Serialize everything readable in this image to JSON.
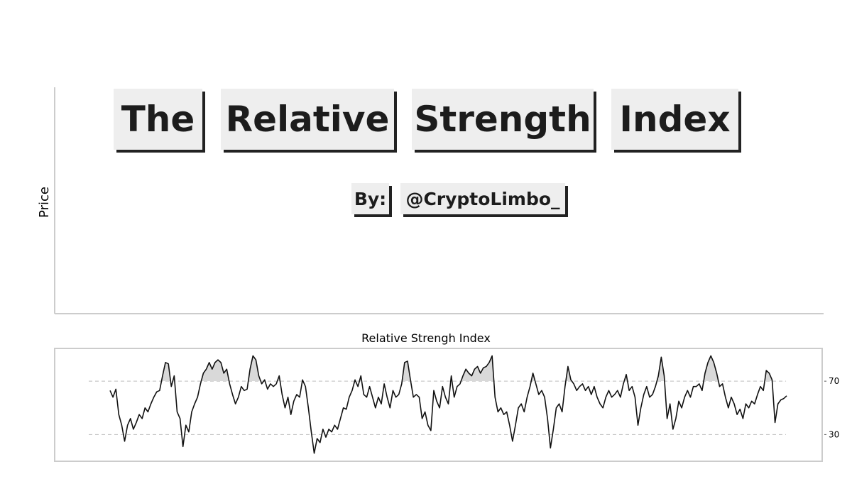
{
  "header": {
    "title_words": [
      "The",
      "Relative",
      "Strength",
      "Index"
    ],
    "byline": [
      "By:",
      "@CryptoLimbo_"
    ]
  },
  "price_panel": {
    "ylabel": "Price"
  },
  "chart_data": {
    "type": "line",
    "title": "Relative Strengh Index",
    "ylim": [
      10,
      94
    ],
    "yticks": [
      30,
      70
    ],
    "grid": true,
    "color": "#111111",
    "shade_color": "#d9d9d9",
    "values": [
      63,
      58,
      64,
      45,
      37,
      25,
      37,
      42,
      34,
      39,
      45,
      42,
      50,
      47,
      53,
      58,
      62,
      63,
      74,
      84,
      83,
      66,
      74,
      47,
      42,
      21,
      37,
      32,
      47,
      53,
      58,
      68,
      76,
      79,
      84,
      79,
      84,
      86,
      84,
      76,
      79,
      68,
      60,
      53,
      58,
      66,
      63,
      64,
      79,
      89,
      86,
      74,
      68,
      71,
      64,
      68,
      66,
      68,
      74,
      60,
      50,
      58,
      45,
      55,
      60,
      58,
      71,
      66,
      50,
      32,
      16,
      27,
      24,
      34,
      28,
      34,
      32,
      37,
      34,
      42,
      50,
      49,
      58,
      63,
      71,
      66,
      74,
      60,
      58,
      66,
      58,
      50,
      58,
      53,
      68,
      58,
      50,
      63,
      58,
      60,
      68,
      84,
      85,
      71,
      58,
      60,
      58,
      42,
      47,
      37,
      33,
      63,
      55,
      50,
      66,
      58,
      53,
      74,
      58,
      66,
      68,
      74,
      79,
      76,
      74,
      79,
      81,
      76,
      80,
      81,
      84,
      89,
      58,
      47,
      50,
      45,
      47,
      37,
      25,
      37,
      50,
      53,
      47,
      58,
      66,
      76,
      68,
      60,
      63,
      58,
      42,
      20,
      34,
      50,
      53,
      47,
      66,
      81,
      71,
      68,
      63,
      66,
      68,
      63,
      66,
      60,
      66,
      58,
      53,
      50,
      58,
      63,
      58,
      60,
      63,
      58,
      68,
      75,
      63,
      66,
      58,
      37,
      50,
      60,
      66,
      58,
      60,
      66,
      74,
      88,
      74,
      42,
      53,
      34,
      42,
      55,
      50,
      58,
      63,
      58,
      66,
      66,
      68,
      63,
      76,
      84,
      89,
      84,
      76,
      66,
      68,
      58,
      50,
      58,
      53,
      45,
      49,
      42,
      53,
      50,
      55,
      53,
      60,
      66,
      63,
      78,
      76,
      71,
      39,
      53,
      56,
      57,
      59
    ]
  }
}
